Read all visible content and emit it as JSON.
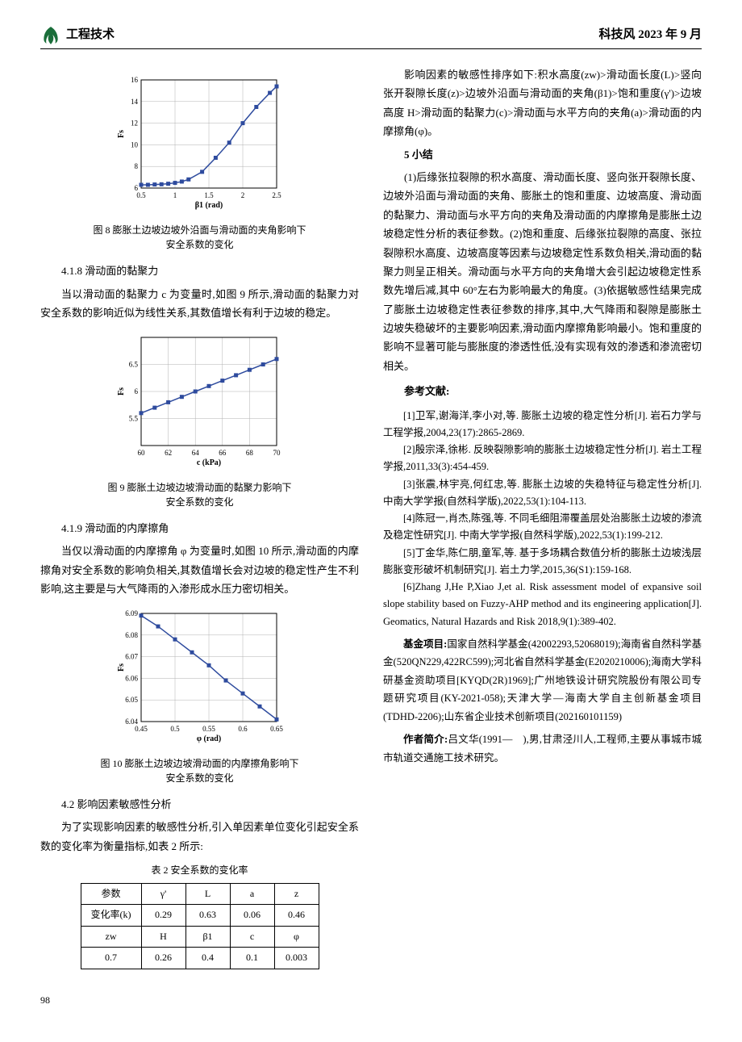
{
  "header": {
    "left": "工程技术",
    "right": "科技风 2023 年 9 月"
  },
  "col_left": {
    "fig8": {
      "type": "line",
      "caption_line1": "图 8 膨胀土边坡边坡外沿面与滑动面的夹角影响下",
      "caption_line2": "安全系数的变化",
      "xlabel": "β1 (rad)",
      "ylabel": "Fs",
      "xlim": [
        0.5,
        2.5
      ],
      "ylim": [
        6,
        16
      ],
      "xticks": [
        0.5,
        1,
        1.5,
        2,
        2.5
      ],
      "yticks": [
        6,
        8,
        10,
        12,
        14,
        16
      ],
      "markers": true,
      "marker_shape": "square",
      "line_color": "#2e4b9e",
      "grid_color": "#b0b0b0",
      "background": "#ffffff",
      "data_x": [
        0.5,
        0.6,
        0.7,
        0.8,
        0.9,
        1.0,
        1.1,
        1.2,
        1.4,
        1.6,
        1.8,
        2.0,
        2.2,
        2.4,
        2.5
      ],
      "data_y": [
        6.3,
        6.3,
        6.33,
        6.35,
        6.4,
        6.48,
        6.6,
        6.8,
        7.5,
        8.8,
        10.2,
        12.0,
        13.5,
        14.8,
        15.4
      ]
    },
    "sec_418_title": "4.1.8 滑动面的黏聚力",
    "sec_418_body": "当以滑动面的黏聚力 c 为变量时,如图 9 所示,滑动面的黏聚力对安全系数的影响近似为线性关系,其数值增长有利于边坡的稳定。",
    "fig9": {
      "type": "line",
      "caption_line1": "图 9 膨胀土边坡边坡滑动面的黏聚力影响下",
      "caption_line2": "安全系数的变化",
      "xlabel": "c (kPa)",
      "ylabel": "Fs",
      "xlim": [
        60,
        70
      ],
      "ylim": [
        5,
        7
      ],
      "xticks": [
        60,
        62,
        64,
        66,
        68,
        70
      ],
      "yticks": [
        5.5,
        6,
        6.5
      ],
      "markers": true,
      "marker_shape": "square",
      "line_color": "#2e4b9e",
      "grid_color": "#b0b0b0",
      "background": "#ffffff",
      "data_x": [
        60,
        61,
        62,
        63,
        64,
        65,
        66,
        67,
        68,
        69,
        70
      ],
      "data_y": [
        5.6,
        5.7,
        5.8,
        5.9,
        6.0,
        6.1,
        6.2,
        6.3,
        6.4,
        6.5,
        6.6
      ]
    },
    "sec_419_title": "4.1.9 滑动面的内摩擦角",
    "sec_419_body": "当仅以滑动面的内摩擦角 φ 为变量时,如图 10 所示,滑动面的内摩擦角对安全系数的影响负相关,其数值增长会对边坡的稳定性产生不利影响,这主要是与大气降雨的入渗形成水压力密切相关。",
    "fig10": {
      "type": "line",
      "caption_line1": "图 10 膨胀土边坡边坡滑动面的内摩擦角影响下",
      "caption_line2": "安全系数的变化",
      "xlabel": "φ (rad)",
      "ylabel": "Fs",
      "xlim": [
        0.45,
        0.65
      ],
      "ylim": [
        6.04,
        6.09
      ],
      "xticks": [
        0.45,
        0.5,
        0.55,
        0.6,
        0.65
      ],
      "yticks": [
        6.04,
        6.05,
        6.06,
        6.07,
        6.08,
        6.09
      ],
      "markers": true,
      "marker_shape": "square",
      "line_color": "#2e4b9e",
      "grid_color": "#b0b0b0",
      "background": "#ffffff",
      "data_x": [
        0.45,
        0.475,
        0.5,
        0.525,
        0.55,
        0.575,
        0.6,
        0.625,
        0.65
      ],
      "data_y": [
        6.089,
        6.084,
        6.078,
        6.072,
        6.066,
        6.059,
        6.053,
        6.047,
        6.041
      ]
    },
    "sec_42_title": "4.2 影响因素敏感性分析",
    "sec_42_body": "为了实现影响因素的敏感性分析,引入单因素单位变化引起安全系数的变化率为衡量指标,如表 2 所示:",
    "table2": {
      "title": "表 2 安全系数的变化率",
      "rows": [
        [
          "参数",
          "γ'",
          "L",
          "a",
          "z"
        ],
        [
          "变化率(k)",
          "0.29",
          "0.63",
          "0.06",
          "0.46"
        ],
        [
          "zw",
          "H",
          "β1",
          "c",
          "φ"
        ],
        [
          "0.7",
          "0.26",
          "0.4",
          "0.1",
          "0.003"
        ]
      ]
    }
  },
  "col_right": {
    "intro": "影响因素的敏感性排序如下:积水高度(zw)>滑动面长度(L)>竖向张开裂隙长度(z)>边坡外沿面与滑动面的夹角(β1)>饱和重度(γ')>边坡高度 H>滑动面的黏聚力(c)>滑动面与水平方向的夹角(a)>滑动面的内摩擦角(φ)。",
    "sec5_title": "5 小结",
    "sec5_pts": "(1)后缘张拉裂隙的积水高度、滑动面长度、竖向张开裂隙长度、边坡外沿面与滑动面的夹角、膨胀土的饱和重度、边坡高度、滑动面的黏聚力、滑动面与水平方向的夹角及滑动面的内摩擦角是膨胀土边坡稳定性分析的表征参数。(2)饱和重度、后缘张拉裂隙的高度、张拉裂隙积水高度、边坡高度等因素与边坡稳定性系数负相关,滑动面的黏聚力则呈正相关。滑动面与水平方向的夹角增大会引起边坡稳定性系数先增后减,其中 60°左右为影响最大的角度。(3)依据敏感性结果完成了膨胀土边坡稳定性表征参数的排序,其中,大气降雨和裂隙是膨胀土边坡失稳破坏的主要影响因素,滑动面内摩擦角影响最小。饱和重度的影响不显著可能与膨胀度的渗透性低,没有实现有效的渗透和渗流密切相关。",
    "refs_title": "参考文献:",
    "refs": [
      "[1]卫军,谢海洋,李小对,等. 膨胀土边坡的稳定性分析[J]. 岩石力学与工程学报,2004,23(17):2865-2869.",
      "[2]殷宗泽,徐彬. 反映裂隙影响的膨胀土边坡稳定性分析[J]. 岩土工程学报,2011,33(3):454-459.",
      "[3]张震,林宇亮,何红忠,等. 膨胀土边坡的失稳特征与稳定性分析[J]. 中南大学学报(自然科学版),2022,53(1):104-113.",
      "[4]陈冠一,肖杰,陈强,等. 不同毛细阻滞覆盖层处治膨胀土边坡的渗流及稳定性研究[J]. 中南大学学报(自然科学版),2022,53(1):199-212.",
      "[5]丁金华,陈仁朋,童军,等. 基于多场耦合数值分析的膨胀土边坡浅层膨胀变形破坏机制研究[J]. 岩土力学,2015,36(S1):159-168.",
      "[6]Zhang J,He P,Xiao J,et al. Risk assessment model of expansive soil slope stability based on Fuzzy-AHP method and its engineering application[J]. Geomatics, Natural Hazards and Risk 2018,9(1):389-402."
    ],
    "funding_label": "基金项目:",
    "funding": "国家自然科学基金(42002293,52068019);海南省自然科学基金(520QN229,422RC599);河北省自然科学基金(E2020210006);海南大学科研基金资助项目[KYQD(2R)1969];广州地铁设计研究院股份有限公司专题研究项目(KY-2021-058);天津大学—海南大学自主创新基金项目(TDHD-2206);山东省企业技术创新项目(202160101159)",
    "author_label": "作者简介:",
    "author": "吕文华(1991—　),男,甘肃泾川人,工程师,主要从事城市城市轨道交通施工技术研究。"
  },
  "page_number": "98"
}
